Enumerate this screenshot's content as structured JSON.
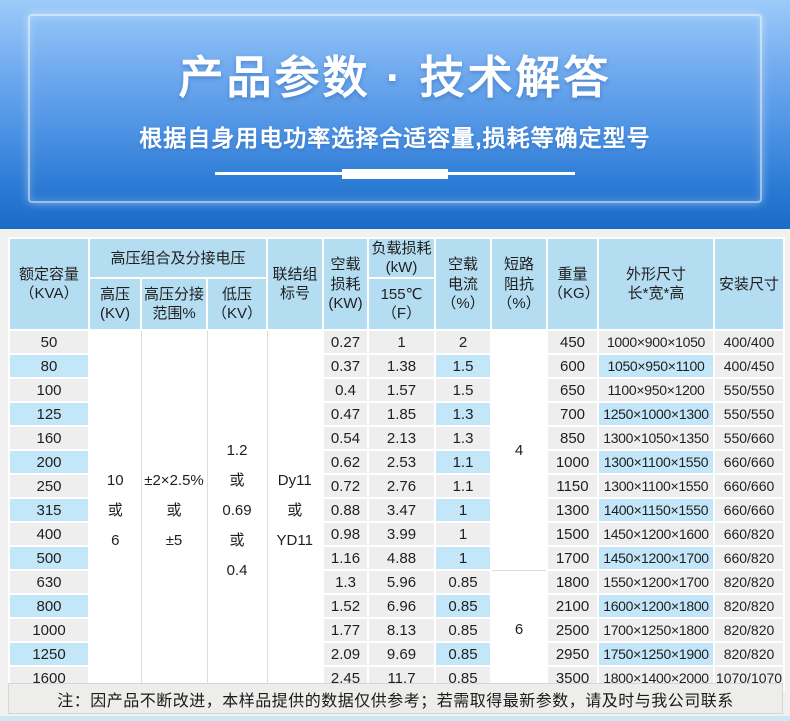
{
  "banner": {
    "title": "产品参数 · 技术解答",
    "subtitle": "根据自身用电功率选择合适容量,损耗等确定型号"
  },
  "table": {
    "headers": {
      "capacity": "额定容量\n（KVA）",
      "hv_group": "高压组合及分接电压",
      "hv": "高压\n(KV)",
      "tap_range": "高压分接\n范围%",
      "lv": "低压\n（KV）",
      "vector_group": "联结组\n标号",
      "no_load_loss": "空载\n损耗\n(KW)",
      "load_loss": "负载损耗\n(kW)",
      "load_loss_sub": "155℃\n（F）",
      "no_load_current": "空载\n电流\n（%）",
      "impedance": "短路\n阻抗\n（%）",
      "weight": "重量\n（KG）",
      "dimensions": "外形尺寸\n长*宽*高",
      "install": "安装尺寸"
    },
    "merged": {
      "hv": "10\n或\n6",
      "tap_range": "±2×2.5%\n或\n±5",
      "lv": "1.2\n或\n0.69\n或\n0.4",
      "vector_group": "Dy11\n或\nYD11",
      "impedance": [
        {
          "value": "4",
          "span": 10
        },
        {
          "value": "6",
          "span": 5
        }
      ]
    },
    "rows": [
      {
        "kva": "50",
        "no_load_loss": "0.27",
        "load_loss": "1",
        "no_load_current": "2",
        "weight": "450",
        "dimensions": "1000×900×1050",
        "install": "400/400"
      },
      {
        "kva": "80",
        "no_load_loss": "0.37",
        "load_loss": "1.38",
        "no_load_current": "1.5",
        "weight": "600",
        "dimensions": "1050×950×1100",
        "install": "400/450"
      },
      {
        "kva": "100",
        "no_load_loss": "0.4",
        "load_loss": "1.57",
        "no_load_current": "1.5",
        "weight": "650",
        "dimensions": "1100×950×1200",
        "install": "550/550"
      },
      {
        "kva": "125",
        "no_load_loss": "0.47",
        "load_loss": "1.85",
        "no_load_current": "1.3",
        "weight": "700",
        "dimensions": "1250×1000×1300",
        "install": "550/550"
      },
      {
        "kva": "160",
        "no_load_loss": "0.54",
        "load_loss": "2.13",
        "no_load_current": "1.3",
        "weight": "850",
        "dimensions": "1300×1050×1350",
        "install": "550/660"
      },
      {
        "kva": "200",
        "no_load_loss": "0.62",
        "load_loss": "2.53",
        "no_load_current": "1.1",
        "weight": "1000",
        "dimensions": "1300×1100×1550",
        "install": "660/660"
      },
      {
        "kva": "250",
        "no_load_loss": "0.72",
        "load_loss": "2.76",
        "no_load_current": "1.1",
        "weight": "1150",
        "dimensions": "1300×1100×1550",
        "install": "660/660"
      },
      {
        "kva": "315",
        "no_load_loss": "0.88",
        "load_loss": "3.47",
        "no_load_current": "1",
        "weight": "1300",
        "dimensions": "1400×1150×1550",
        "install": "660/660"
      },
      {
        "kva": "400",
        "no_load_loss": "0.98",
        "load_loss": "3.99",
        "no_load_current": "1",
        "weight": "1500",
        "dimensions": "1450×1200×1600",
        "install": "660/820"
      },
      {
        "kva": "500",
        "no_load_loss": "1.16",
        "load_loss": "4.88",
        "no_load_current": "1",
        "weight": "1700",
        "dimensions": "1450×1200×1700",
        "install": "660/820"
      },
      {
        "kva": "630",
        "no_load_loss": "1.3",
        "load_loss": "5.96",
        "no_load_current": "0.85",
        "weight": "1800",
        "dimensions": "1550×1200×1700",
        "install": "820/820"
      },
      {
        "kva": "800",
        "no_load_loss": "1.52",
        "load_loss": "6.96",
        "no_load_current": "0.85",
        "weight": "2100",
        "dimensions": "1600×1200×1800",
        "install": "820/820"
      },
      {
        "kva": "1000",
        "no_load_loss": "1.77",
        "load_loss": "8.13",
        "no_load_current": "0.85",
        "weight": "2500",
        "dimensions": "1700×1250×1800",
        "install": "820/820"
      },
      {
        "kva": "1250",
        "no_load_loss": "2.09",
        "load_loss": "9.69",
        "no_load_current": "0.85",
        "weight": "2950",
        "dimensions": "1750×1250×1900",
        "install": "820/820"
      },
      {
        "kva": "1600",
        "no_load_loss": "2.45",
        "load_loss": "11.7",
        "no_load_current": "0.85",
        "weight": "3500",
        "dimensions": "1800×1400×2000",
        "install": "1070/1070"
      }
    ],
    "highlight_columns": [
      "kva",
      "no_load_current",
      "dimensions"
    ]
  },
  "note": "注：因产品不断改进，本样品提供的数据仅供参考；若需取得最新参数，请及时与我公司联系",
  "colors": {
    "banner_gradient_top": "#9ccbf9",
    "banner_gradient_bottom": "#1b6cc6",
    "header_bg": "#b5ddf1",
    "cell_bg": "#eeeeee",
    "highlight_bg": "#c3e6f8",
    "note_bg": "#ededeb",
    "bottom_strip": "#cde7f7"
  }
}
